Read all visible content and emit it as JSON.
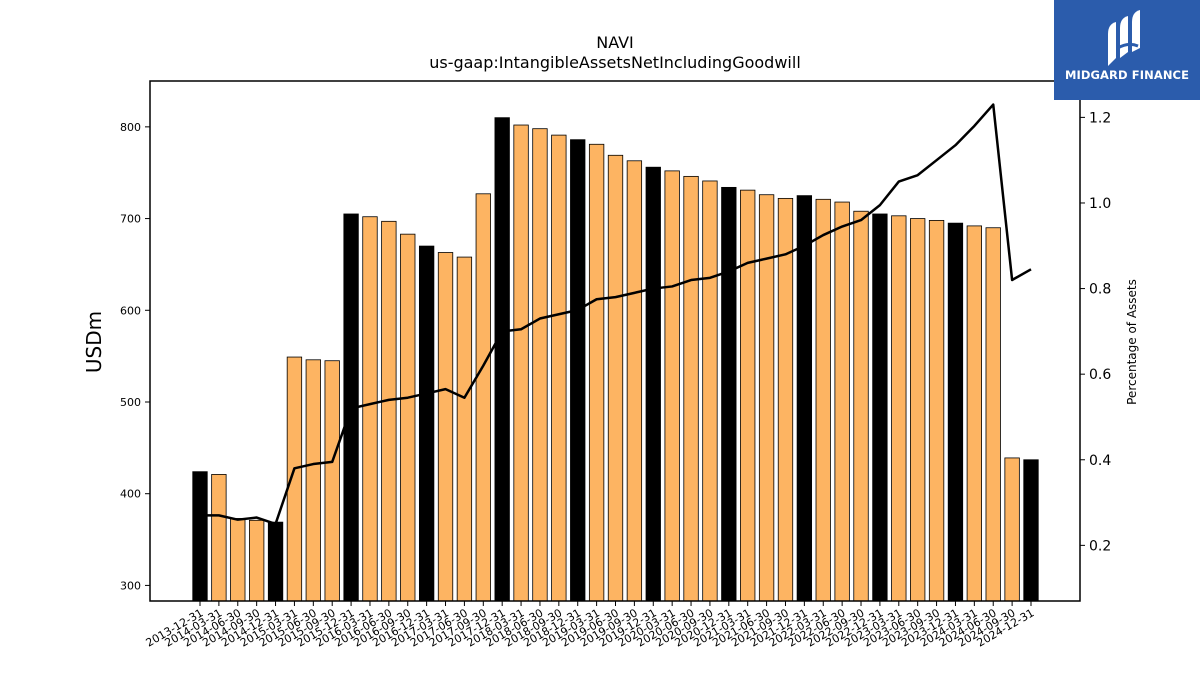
{
  "chart_data": {
    "type": "bar",
    "title": "NAVI",
    "subtitle": "us-gaap:IntangibleAssetsNetIncludingGoodwill",
    "ylabel": "USDm",
    "y2label": "Percentage of Assets",
    "ylim": [
      283,
      850
    ],
    "y2lim": [
      0.07,
      1.285
    ],
    "yticks": [
      300,
      400,
      500,
      600,
      700,
      800
    ],
    "y2ticks": [
      0.2,
      0.4,
      0.6,
      0.8,
      1.0,
      1.2
    ],
    "grid": false,
    "colors": {
      "year_end": "#000000",
      "quarter": "#fdb462",
      "line": "#000000"
    },
    "categories": [
      "2013-12-31",
      "2014-03-31",
      "2014-06-30",
      "2014-09-30",
      "2014-12-31",
      "2015-03-31",
      "2015-06-30",
      "2015-09-30",
      "2015-12-31",
      "2016-03-31",
      "2016-06-30",
      "2016-09-30",
      "2016-12-31",
      "2017-03-31",
      "2017-06-30",
      "2017-09-30",
      "2017-12-31",
      "2018-03-31",
      "2018-06-30",
      "2018-09-30",
      "2018-12-31",
      "2019-03-31",
      "2019-06-30",
      "2019-09-30",
      "2019-12-31",
      "2020-03-31",
      "2020-06-30",
      "2020-09-30",
      "2020-12-31",
      "2021-03-31",
      "2021-06-30",
      "2021-09-30",
      "2021-12-31",
      "2022-03-31",
      "2022-06-30",
      "2022-09-30",
      "2022-12-31",
      "2023-03-31",
      "2023-06-30",
      "2023-09-30",
      "2023-12-31",
      "2024-03-31",
      "2024-06-30",
      "2024-09-30",
      "2024-12-31"
    ],
    "series": [
      {
        "values": [
          424,
          421,
          373,
          371,
          369,
          549,
          546,
          545,
          705,
          702,
          697,
          683,
          670,
          663,
          658,
          727,
          810,
          802,
          798,
          791,
          786,
          781,
          769,
          763,
          756,
          752,
          746,
          741,
          734,
          731,
          726,
          722,
          725,
          721,
          718,
          708,
          705,
          703,
          700,
          698,
          695,
          692,
          690,
          439,
          437
        ]
      },
      {
        "values": [
          0.27,
          0.27,
          0.26,
          0.265,
          0.25,
          0.38,
          0.39,
          0.395,
          0.52,
          0.53,
          0.54,
          0.545,
          0.555,
          0.565,
          0.545,
          0.62,
          0.7,
          0.705,
          0.73,
          0.74,
          0.75,
          0.775,
          0.78,
          0.79,
          0.8,
          0.805,
          0.82,
          0.825,
          0.84,
          0.86,
          0.87,
          0.88,
          0.9,
          0.925,
          0.945,
          0.96,
          0.995,
          1.05,
          1.065,
          1.1,
          1.135,
          1.18,
          1.23,
          0.82,
          0.845
        ]
      }
    ],
    "year_end_flags": [
      1,
      0,
      0,
      0,
      1,
      0,
      0,
      0,
      1,
      0,
      0,
      0,
      1,
      0,
      0,
      0,
      1,
      0,
      0,
      0,
      1,
      0,
      0,
      0,
      1,
      0,
      0,
      0,
      1,
      0,
      0,
      0,
      1,
      0,
      0,
      0,
      1,
      0,
      0,
      0,
      1,
      0,
      0,
      0,
      1
    ]
  },
  "logo": {
    "text": "MIDGARD FINANCE",
    "icon": "midgard-logo-icon"
  }
}
